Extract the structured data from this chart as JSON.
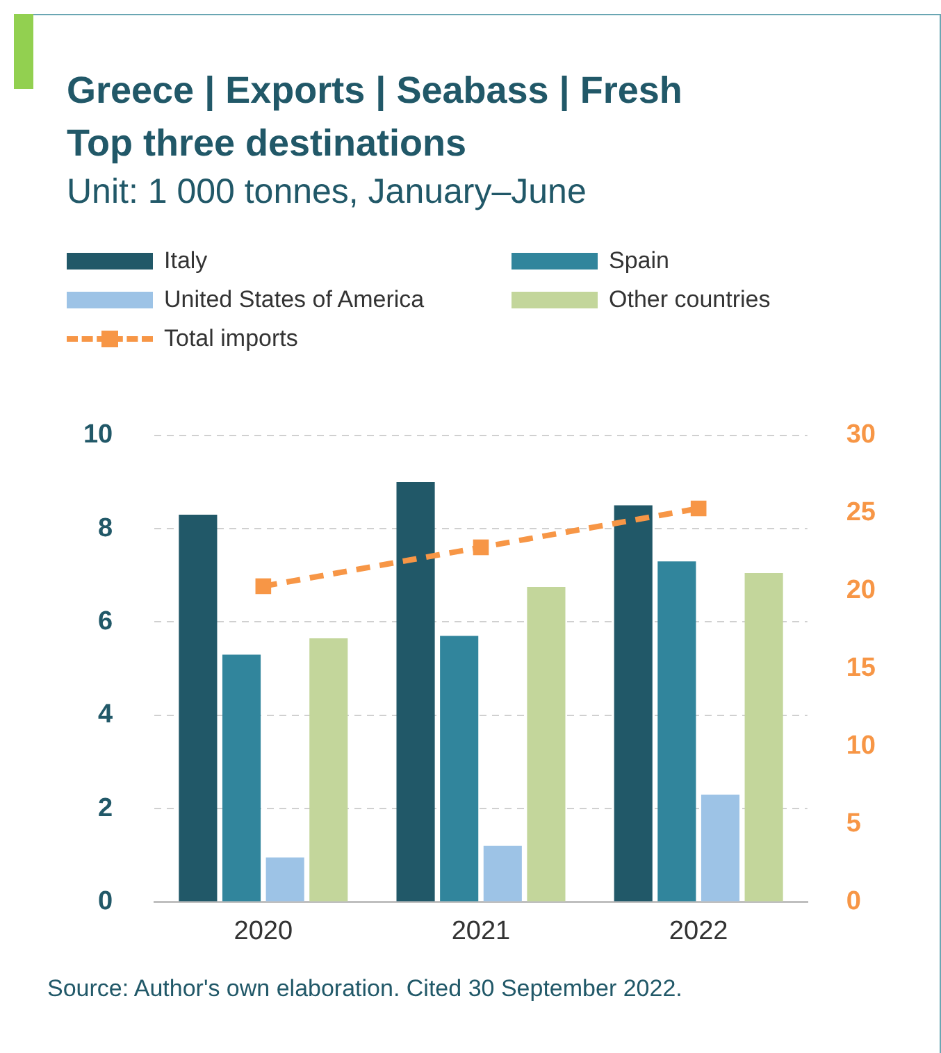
{
  "chart_data": {
    "type": "bar",
    "title": "Greece | Exports | Seabass | Fresh\nTop three destinations",
    "subtitle": "Unit: 1 000 tonnes, January–June",
    "categories": [
      "2020",
      "2021",
      "2022"
    ],
    "series": [
      {
        "name": "Italy",
        "color": "#215868",
        "values": [
          8.3,
          9.0,
          8.5
        ]
      },
      {
        "name": "Spain",
        "color": "#31859c",
        "values": [
          5.3,
          5.7,
          7.3
        ]
      },
      {
        "name": "United States of America",
        "color": "#9dc3e6",
        "values": [
          0.95,
          1.2,
          2.3
        ]
      },
      {
        "name": "Other countries",
        "color": "#c3d69b",
        "values": [
          5.65,
          6.75,
          7.05
        ]
      },
      {
        "name": "Total imports",
        "type": "line",
        "axis": "y2",
        "color": "#f79646",
        "marker": "square",
        "line_style": "dashed",
        "values": [
          20.3,
          22.8,
          25.3
        ]
      }
    ],
    "ylim": [
      0,
      10
    ],
    "yticks": [
      0,
      2,
      4,
      6,
      8,
      10
    ],
    "y2lim": [
      0,
      30
    ],
    "y2ticks": [
      0,
      5,
      10,
      15,
      20,
      25,
      30
    ],
    "grid": "y",
    "legend": "top left",
    "annotations": [
      "Source: Author's own elaboration. Cited 30 September 2022."
    ]
  }
}
